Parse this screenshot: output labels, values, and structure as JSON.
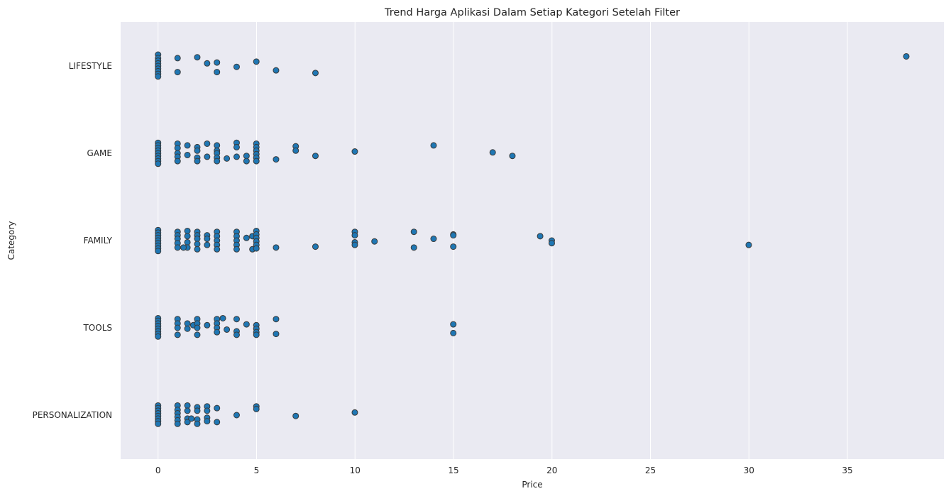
{
  "chart_data": {
    "type": "scatter",
    "title": "Trend Harga Aplikasi Dalam Setiap Kategori Setelah Filter",
    "xlabel": "Price",
    "ylabel": "Category",
    "xlim": [
      -1.9,
      39.9
    ],
    "xticks": [
      0,
      5,
      10,
      15,
      20,
      25,
      30,
      35
    ],
    "grid": "vertical",
    "legend": "none",
    "marker_color": "#1f77b4",
    "marker_edge_color": "#3a3a3a",
    "background_color": "#eaeaf2",
    "categories": [
      "LIFESTYLE",
      "GAME",
      "FAMILY",
      "TOOLS",
      "PERSONALIZATION"
    ],
    "series": [
      {
        "category": "LIFESTYLE",
        "points": [
          [
            0,
            -0.13
          ],
          [
            0,
            -0.09
          ],
          [
            0,
            -0.06
          ],
          [
            0,
            -0.03
          ],
          [
            0,
            0
          ],
          [
            0,
            0.03
          ],
          [
            0,
            0.06
          ],
          [
            0,
            0.09
          ],
          [
            0,
            0.12
          ],
          [
            0.99,
            -0.09
          ],
          [
            0.99,
            0.07
          ],
          [
            1.99,
            -0.1
          ],
          [
            2.49,
            -0.03
          ],
          [
            2.99,
            -0.04
          ],
          [
            2.99,
            0.07
          ],
          [
            3.99,
            0.01
          ],
          [
            4.99,
            -0.05
          ],
          [
            5.99,
            0.05
          ],
          [
            7.99,
            0.08
          ],
          [
            37.99,
            -0.11
          ]
        ]
      },
      {
        "category": "GAME",
        "points": [
          [
            0,
            -0.12
          ],
          [
            0,
            -0.09
          ],
          [
            0,
            -0.06
          ],
          [
            0,
            -0.03
          ],
          [
            0,
            0
          ],
          [
            0,
            0.03
          ],
          [
            0,
            0.06
          ],
          [
            0,
            0.09
          ],
          [
            0,
            0.12
          ],
          [
            0.99,
            -0.11
          ],
          [
            0.99,
            -0.06
          ],
          [
            0.99,
            0
          ],
          [
            0.99,
            0.04
          ],
          [
            0.99,
            0.09
          ],
          [
            1.49,
            -0.09
          ],
          [
            1.49,
            0.02
          ],
          [
            1.99,
            -0.07
          ],
          [
            1.99,
            -0.03
          ],
          [
            1.99,
            0.05
          ],
          [
            1.99,
            0.09
          ],
          [
            2.49,
            -0.11
          ],
          [
            2.49,
            0.04
          ],
          [
            2.99,
            -0.09
          ],
          [
            2.99,
            -0.03
          ],
          [
            2.99,
            0
          ],
          [
            2.99,
            0.05
          ],
          [
            2.99,
            0.09
          ],
          [
            3.49,
            0.06
          ],
          [
            3.99,
            -0.12
          ],
          [
            3.99,
            -0.07
          ],
          [
            3.99,
            0.04
          ],
          [
            4.49,
            0.03
          ],
          [
            4.49,
            0.09
          ],
          [
            4.99,
            -0.11
          ],
          [
            4.99,
            -0.07
          ],
          [
            4.99,
            -0.03
          ],
          [
            4.99,
            0.01
          ],
          [
            4.99,
            0.05
          ],
          [
            4.99,
            0.09
          ],
          [
            5.99,
            0.07
          ],
          [
            6.99,
            -0.08
          ],
          [
            6.99,
            -0.03
          ],
          [
            7.99,
            0.03
          ],
          [
            9.99,
            -0.02
          ],
          [
            13.99,
            -0.09
          ],
          [
            16.99,
            -0.01
          ],
          [
            17.99,
            0.03
          ]
        ]
      },
      {
        "category": "FAMILY",
        "points": [
          [
            0,
            -0.12
          ],
          [
            0,
            -0.09
          ],
          [
            0,
            -0.06
          ],
          [
            0,
            -0.03
          ],
          [
            0,
            0
          ],
          [
            0,
            0.03
          ],
          [
            0,
            0.06
          ],
          [
            0,
            0.09
          ],
          [
            0,
            0.12
          ],
          [
            0.99,
            -0.1
          ],
          [
            0.99,
            -0.06
          ],
          [
            0.99,
            -0.02
          ],
          [
            0.99,
            0.03
          ],
          [
            0.99,
            0.08
          ],
          [
            1.49,
            -0.11
          ],
          [
            1.49,
            -0.05
          ],
          [
            1.49,
            0.02
          ],
          [
            1.49,
            0.08
          ],
          [
            1.29,
            0.08
          ],
          [
            1.99,
            -0.1
          ],
          [
            1.99,
            -0.06
          ],
          [
            1.99,
            -0.02
          ],
          [
            1.99,
            0.04
          ],
          [
            1.99,
            0.1
          ],
          [
            2.49,
            -0.06
          ],
          [
            2.49,
            -0.02
          ],
          [
            2.49,
            0.05
          ],
          [
            2.99,
            -0.1
          ],
          [
            2.99,
            -0.05
          ],
          [
            2.99,
            0
          ],
          [
            2.99,
            0.05
          ],
          [
            2.99,
            0.1
          ],
          [
            3.99,
            -0.1
          ],
          [
            3.99,
            -0.05
          ],
          [
            3.99,
            0
          ],
          [
            3.99,
            0.05
          ],
          [
            3.99,
            0.1
          ],
          [
            4.49,
            -0.03
          ],
          [
            4.79,
            -0.05
          ],
          [
            4.79,
            0.1
          ],
          [
            4.99,
            -0.11
          ],
          [
            4.99,
            -0.07
          ],
          [
            4.99,
            -0.03
          ],
          [
            4.99,
            0.01
          ],
          [
            4.99,
            0.05
          ],
          [
            4.99,
            0.09
          ],
          [
            5.99,
            0.08
          ],
          [
            7.99,
            0.07
          ],
          [
            9.99,
            -0.1
          ],
          [
            9.99,
            -0.06
          ],
          [
            9.99,
            0.02
          ],
          [
            9.99,
            0.05
          ],
          [
            10.99,
            0.01
          ],
          [
            12.99,
            -0.1
          ],
          [
            12.99,
            0.08
          ],
          [
            13.99,
            -0.02
          ],
          [
            14.99,
            -0.07
          ],
          [
            14.99,
            -0.06
          ],
          [
            14.99,
            0.07
          ],
          [
            19.4,
            -0.05
          ],
          [
            19.99,
            0
          ],
          [
            19.99,
            0.03
          ],
          [
            29.99,
            0.05
          ]
        ]
      },
      {
        "category": "TOOLS",
        "points": [
          [
            0,
            -0.11
          ],
          [
            0,
            -0.08
          ],
          [
            0,
            -0.05
          ],
          [
            0,
            -0.02
          ],
          [
            0,
            0.01
          ],
          [
            0,
            0.04
          ],
          [
            0,
            0.07
          ],
          [
            0,
            0.1
          ],
          [
            0.99,
            -0.1
          ],
          [
            0.99,
            -0.05
          ],
          [
            0.99,
            0
          ],
          [
            0.99,
            0.08
          ],
          [
            1.49,
            -0.05
          ],
          [
            1.49,
            0.01
          ],
          [
            1.79,
            -0.03
          ],
          [
            1.99,
            -0.1
          ],
          [
            1.99,
            -0.05
          ],
          [
            1.99,
            0
          ],
          [
            1.99,
            0.08
          ],
          [
            2.49,
            -0.03
          ],
          [
            2.99,
            -0.1
          ],
          [
            2.99,
            -0.05
          ],
          [
            2.99,
            0
          ],
          [
            2.99,
            0.05
          ],
          [
            3.29,
            -0.11
          ],
          [
            3.49,
            0.02
          ],
          [
            3.99,
            -0.1
          ],
          [
            3.99,
            0.04
          ],
          [
            3.99,
            0.08
          ],
          [
            4.49,
            -0.04
          ],
          [
            4.99,
            -0.03
          ],
          [
            4.99,
            0.01
          ],
          [
            4.99,
            0.05
          ],
          [
            4.99,
            0.08
          ],
          [
            5.99,
            -0.1
          ],
          [
            5.99,
            0.07
          ],
          [
            14.99,
            -0.04
          ],
          [
            14.99,
            0.06
          ]
        ]
      },
      {
        "category": "PERSONALIZATION",
        "points": [
          [
            0,
            -0.11
          ],
          [
            0,
            -0.08
          ],
          [
            0,
            -0.05
          ],
          [
            0,
            -0.02
          ],
          [
            0,
            0.01
          ],
          [
            0,
            0.04
          ],
          [
            0,
            0.07
          ],
          [
            0,
            0.1
          ],
          [
            0.99,
            -0.11
          ],
          [
            0.99,
            -0.06
          ],
          [
            0.99,
            -0.02
          ],
          [
            0.99,
            0.02
          ],
          [
            0.99,
            0.06
          ],
          [
            0.99,
            0.1
          ],
          [
            1.49,
            -0.11
          ],
          [
            1.49,
            -0.05
          ],
          [
            1.49,
            0.04
          ],
          [
            1.49,
            0.08
          ],
          [
            1.69,
            0.04
          ],
          [
            1.99,
            -0.09
          ],
          [
            1.99,
            -0.05
          ],
          [
            1.99,
            0.05
          ],
          [
            1.99,
            0.1
          ],
          [
            2.49,
            -0.1
          ],
          [
            2.49,
            -0.05
          ],
          [
            2.49,
            0.03
          ],
          [
            2.49,
            0.07
          ],
          [
            2.99,
            -0.08
          ],
          [
            2.99,
            0.08
          ],
          [
            3.99,
            0
          ],
          [
            4.99,
            -0.1
          ],
          [
            4.99,
            -0.07
          ],
          [
            6.99,
            0.01
          ],
          [
            9.99,
            -0.03
          ]
        ]
      }
    ]
  }
}
